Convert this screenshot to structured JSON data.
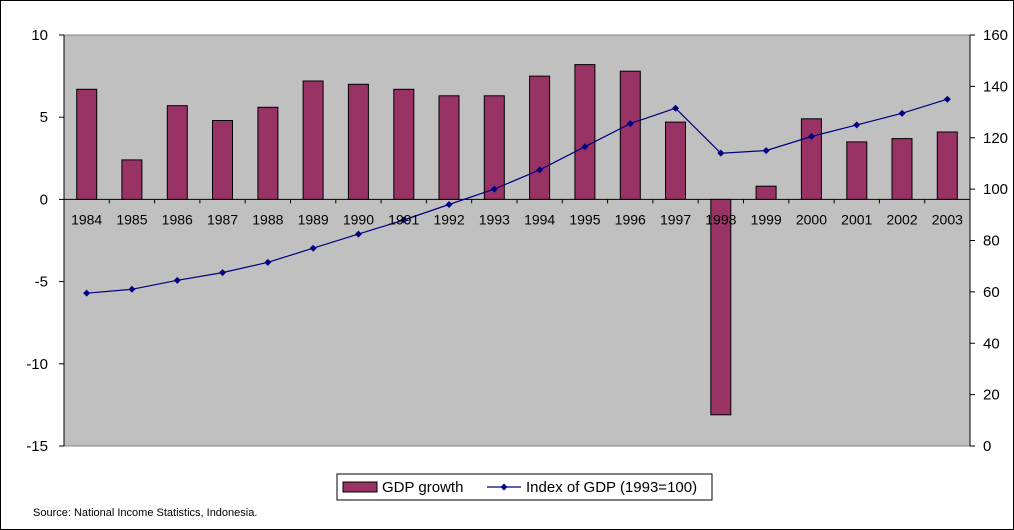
{
  "chart_data": {
    "type": "bar",
    "categories": [
      "1984",
      "1985",
      "1986",
      "1987",
      "1988",
      "1989",
      "1990",
      "1991",
      "1992",
      "1993",
      "1994",
      "1995",
      "1996",
      "1997",
      "1998",
      "1999",
      "2000",
      "2001",
      "2002",
      "2003"
    ],
    "series": [
      {
        "name": "GDP growth",
        "kind": "bar",
        "axis": "left",
        "color": "#993366",
        "values": [
          6.7,
          2.4,
          5.7,
          4.8,
          5.6,
          7.2,
          7.0,
          6.7,
          6.3,
          6.3,
          7.5,
          8.2,
          7.8,
          4.7,
          -13.1,
          0.8,
          4.9,
          3.5,
          3.7,
          4.1
        ]
      },
      {
        "name": "Index of GDP (1993=100)",
        "kind": "line",
        "axis": "right",
        "color": "#000080",
        "values": [
          59.5,
          61,
          64.5,
          67.5,
          71.5,
          77,
          82.5,
          88,
          94,
          100,
          107.5,
          116.5,
          125.5,
          131.5,
          114,
          115,
          120.5,
          125,
          129.5,
          135
        ]
      }
    ],
    "left_axis": {
      "ylim": [
        -15,
        10
      ],
      "ticks": [
        10,
        5,
        0,
        -5,
        -10,
        -15
      ]
    },
    "right_axis": {
      "ylim": [
        0,
        160
      ],
      "ticks": [
        160,
        140,
        120,
        100,
        80,
        60,
        40,
        20,
        0
      ]
    },
    "plot_background": "#c0c0c0",
    "grid": false,
    "legend": {
      "placement": "bottom-center",
      "entries": [
        "GDP growth",
        "Index of GDP (1993=100)"
      ]
    },
    "source": "Source: National Income Statistics, Indonesia."
  }
}
